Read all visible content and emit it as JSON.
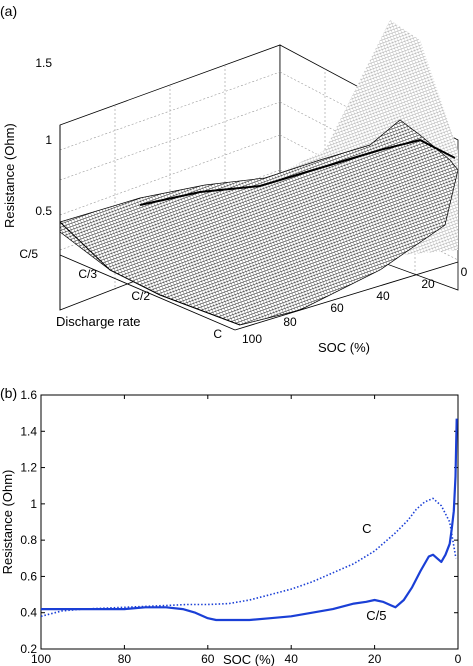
{
  "panel_a": {
    "label": "(a)",
    "chart_data": {
      "type": "surface",
      "zlabel": "Resistance (Ohm)",
      "xlabel": "SOC (%)",
      "ylabel": "Discharge rate",
      "z_ticks": [
        "0.5",
        "1",
        "1.5"
      ],
      "x_ticks": [
        "100",
        "80",
        "60",
        "40",
        "20",
        "0"
      ],
      "y_ticks": [
        "C/5",
        "C/3",
        "C/2",
        "C"
      ],
      "zlim": [
        0.3,
        1.5
      ],
      "grid": true
    }
  },
  "panel_b": {
    "label": "(b)",
    "chart_data": {
      "type": "line",
      "xlabel": "SOC (%)",
      "ylabel": "Resistance (Ohm)",
      "xlim": [
        100,
        0
      ],
      "ylim": [
        0.2,
        1.6
      ],
      "x_ticks": [
        "100",
        "80",
        "60",
        "40",
        "20",
        "0"
      ],
      "y_ticks": [
        "0.2",
        "0.4",
        "0.6",
        "0.8",
        "1",
        "1.2",
        "1.4",
        "1.6"
      ],
      "series": [
        {
          "name": "C",
          "style": "dotted",
          "color": "#1a3fd6",
          "x": [
            100,
            95,
            90,
            80,
            70,
            65,
            60,
            55,
            50,
            45,
            40,
            35,
            30,
            25,
            20,
            15,
            12,
            10,
            8,
            6,
            4,
            2,
            0.5
          ],
          "y": [
            0.38,
            0.41,
            0.42,
            0.43,
            0.44,
            0.445,
            0.445,
            0.45,
            0.47,
            0.5,
            0.53,
            0.57,
            0.62,
            0.67,
            0.74,
            0.84,
            0.91,
            0.97,
            1.01,
            1.03,
            0.99,
            0.9,
            0.7
          ]
        },
        {
          "name": "C/5",
          "style": "solid",
          "color": "#1a3fd6",
          "x": [
            100,
            95,
            90,
            85,
            80,
            75,
            70,
            66,
            63,
            60,
            58,
            55,
            50,
            45,
            40,
            35,
            30,
            25,
            22,
            20,
            18,
            16,
            15,
            13,
            11,
            9,
            7,
            6,
            5,
            4,
            3,
            2,
            1.5,
            1,
            0.6,
            0.3
          ],
          "y": [
            0.42,
            0.42,
            0.42,
            0.42,
            0.42,
            0.43,
            0.43,
            0.42,
            0.4,
            0.37,
            0.36,
            0.36,
            0.36,
            0.37,
            0.38,
            0.4,
            0.42,
            0.45,
            0.46,
            0.47,
            0.46,
            0.44,
            0.43,
            0.47,
            0.54,
            0.63,
            0.71,
            0.72,
            0.7,
            0.68,
            0.72,
            0.78,
            0.86,
            0.96,
            1.15,
            1.47
          ]
        }
      ],
      "annotations": [
        {
          "text": "C",
          "x": 23,
          "y": 0.84
        },
        {
          "text": "C/5",
          "x": 22,
          "y": 0.36
        }
      ]
    }
  }
}
